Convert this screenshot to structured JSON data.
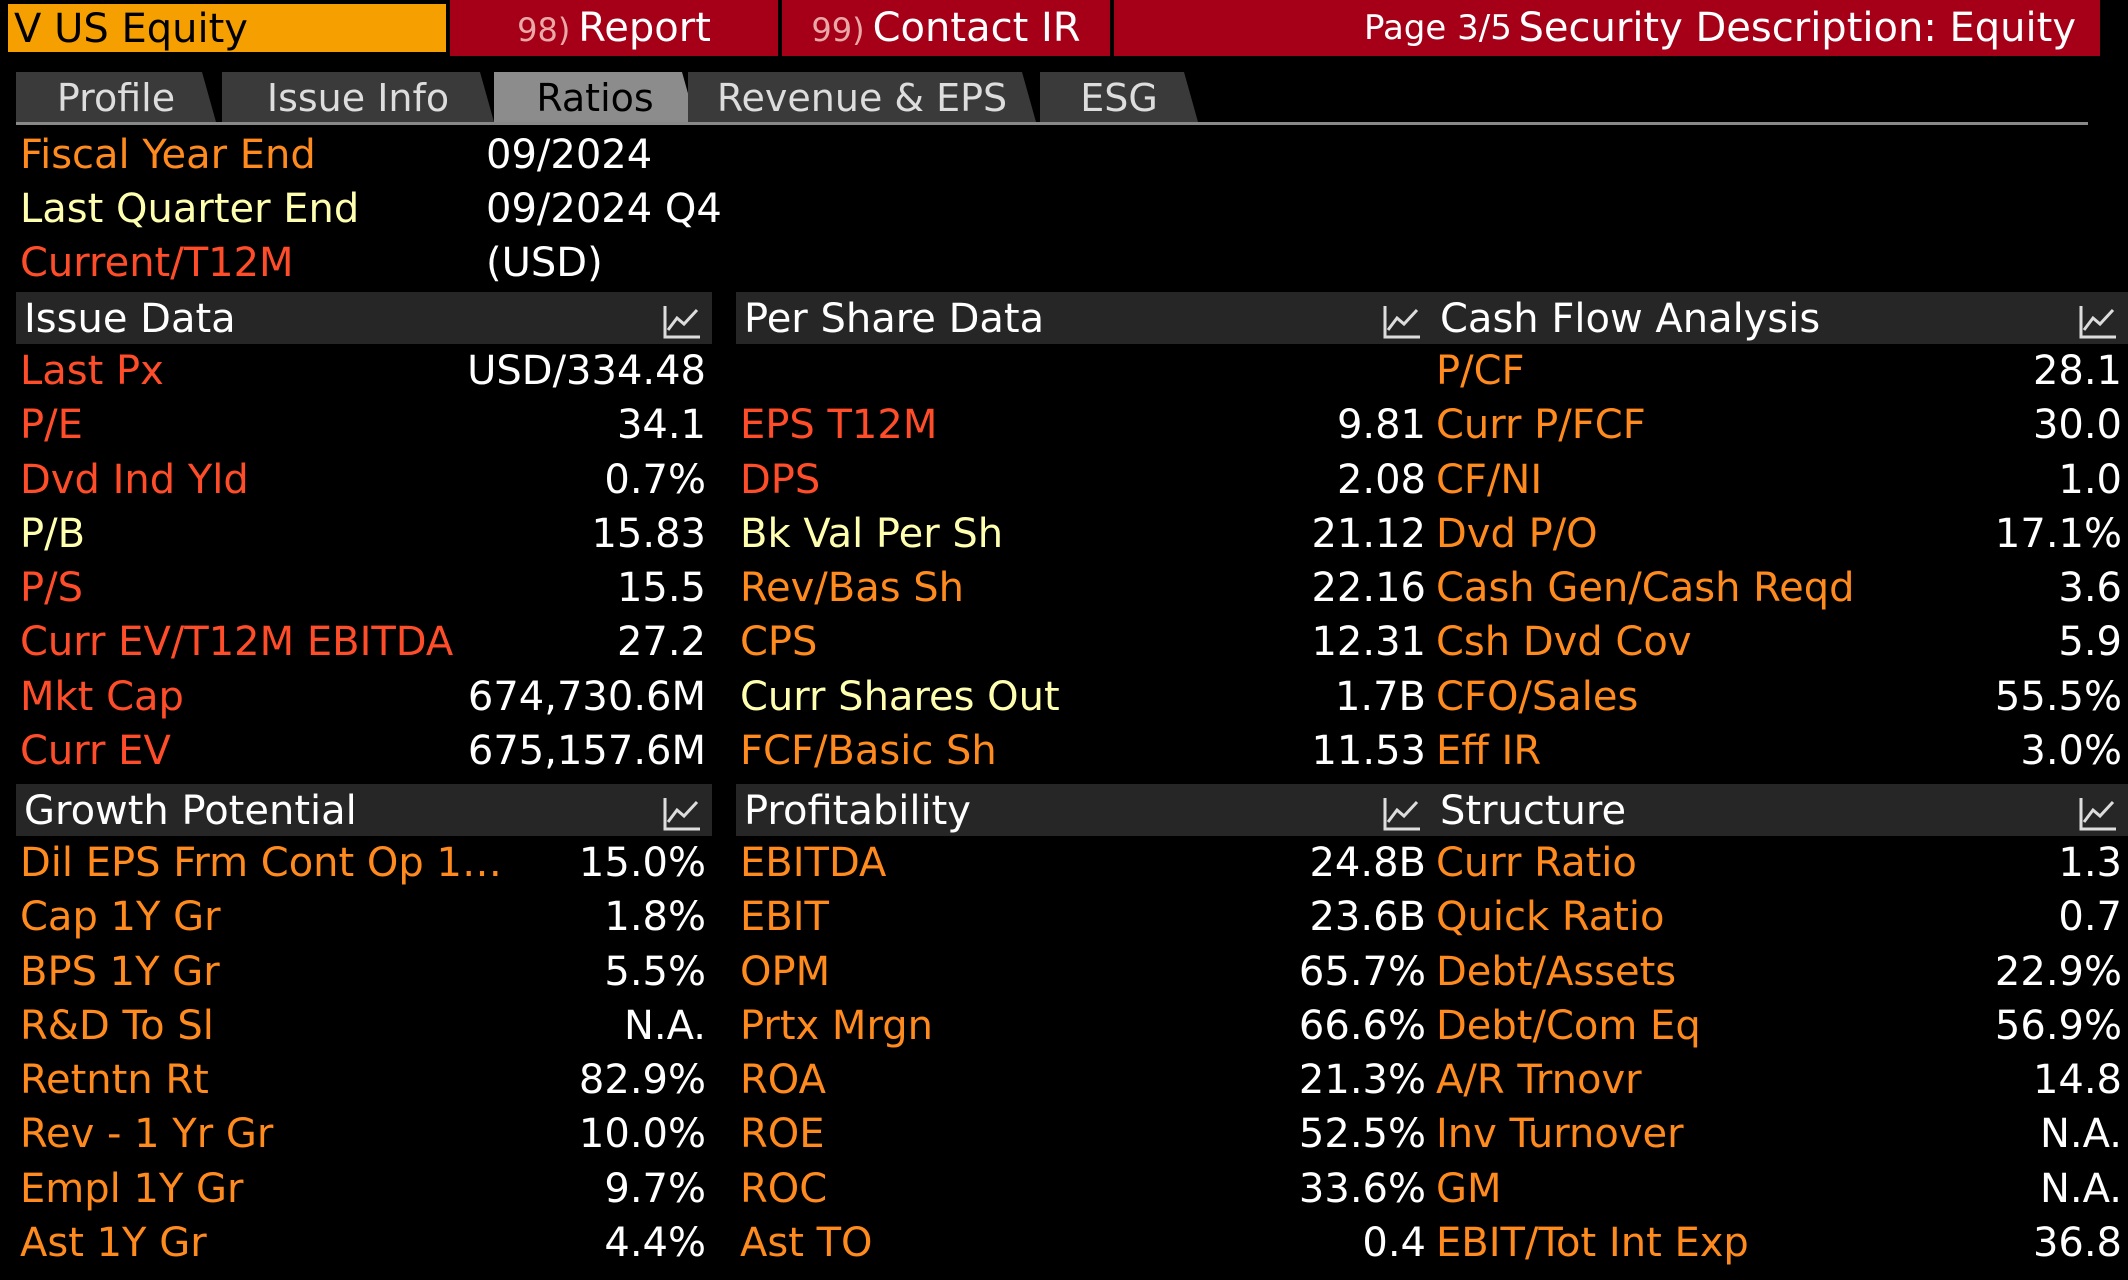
{
  "topbar": {
    "ticker": "V US Equity",
    "report_num": "98)",
    "report_label": "Report",
    "contact_num": "99)",
    "contact_label": "Contact IR",
    "page": "Page 3/5",
    "description": "Security Description: Equity"
  },
  "tabs": [
    {
      "label": "Profile"
    },
    {
      "label": "Issue Info"
    },
    {
      "label": "Ratios",
      "active": true
    },
    {
      "label": "Revenue & EPS"
    },
    {
      "label": "ESG"
    }
  ],
  "info": {
    "fiscal_year_end_label": "Fiscal Year End",
    "fiscal_year_end_value": "09/2024",
    "last_quarter_end_label": "Last Quarter End",
    "last_quarter_end_value": "09/2024 Q4",
    "current_label": "Current/T12M",
    "current_value": "(USD)"
  },
  "colors": {
    "orange": "#ff8a1e",
    "yellow": "#ffffb0",
    "red": "#ff4d2a",
    "ticker_bg": "#f5a000",
    "topbar_bg": "#a50017"
  },
  "panels": {
    "issue_data": {
      "title": "Issue Data",
      "rows": [
        {
          "label": "Last Px",
          "value": "USD/334.48",
          "color": "red"
        },
        {
          "label": "P/E",
          "value": "34.1",
          "color": "red"
        },
        {
          "label": "Dvd Ind Yld",
          "value": "0.7%",
          "color": "red"
        },
        {
          "label": "P/B",
          "value": "15.83",
          "color": "yellow"
        },
        {
          "label": "P/S",
          "value": "15.5",
          "color": "red"
        },
        {
          "label": "Curr EV/T12M EBITDA",
          "value": "27.2",
          "color": "red"
        },
        {
          "label": "Mkt Cap",
          "value": "674,730.6M",
          "color": "red"
        },
        {
          "label": "Curr EV",
          "value": "675,157.6M",
          "color": "red"
        }
      ]
    },
    "per_share_data": {
      "title": "Per Share Data",
      "rows": [
        {
          "label": "",
          "value": "",
          "color": "red"
        },
        {
          "label": "EPS T12M",
          "value": "9.81",
          "color": "red"
        },
        {
          "label": "DPS",
          "value": "2.08",
          "color": "red"
        },
        {
          "label": "Bk Val Per Sh",
          "value": "21.12",
          "color": "yellow"
        },
        {
          "label": "Rev/Bas Sh",
          "value": "22.16",
          "color": "orange"
        },
        {
          "label": "CPS",
          "value": "12.31",
          "color": "orange"
        },
        {
          "label": "Curr Shares Out",
          "value": "1.7B",
          "color": "yellow"
        },
        {
          "label": "FCF/Basic Sh",
          "value": "11.53",
          "color": "orange"
        }
      ]
    },
    "cash_flow_analysis": {
      "title": "Cash Flow Analysis",
      "rows": [
        {
          "label": "P/CF",
          "value": "28.1",
          "color": "orange"
        },
        {
          "label": "Curr P/FCF",
          "value": "30.0",
          "color": "orange"
        },
        {
          "label": "CF/NI",
          "value": "1.0",
          "color": "orange"
        },
        {
          "label": "Dvd P/O",
          "value": "17.1%",
          "color": "orange"
        },
        {
          "label": "Cash Gen/Cash Reqd",
          "value": "3.6",
          "color": "orange"
        },
        {
          "label": "Csh Dvd Cov",
          "value": "5.9",
          "color": "orange"
        },
        {
          "label": "CFO/Sales",
          "value": "55.5%",
          "color": "orange"
        },
        {
          "label": "Eff IR",
          "value": "3.0%",
          "color": "orange"
        }
      ]
    },
    "growth_potential": {
      "title": "Growth Potential",
      "rows": [
        {
          "label": "Dil EPS Frm Cont Op 1…",
          "value": "15.0%",
          "color": "orange"
        },
        {
          "label": "Cap 1Y Gr",
          "value": "1.8%",
          "color": "orange"
        },
        {
          "label": "BPS 1Y Gr",
          "value": "5.5%",
          "color": "orange"
        },
        {
          "label": "R&D To Sl",
          "value": "N.A.",
          "color": "orange"
        },
        {
          "label": "Retntn Rt",
          "value": "82.9%",
          "color": "orange"
        },
        {
          "label": "Rev - 1 Yr Gr",
          "value": "10.0%",
          "color": "orange"
        },
        {
          "label": "Empl 1Y Gr",
          "value": "9.7%",
          "color": "orange"
        },
        {
          "label": "Ast 1Y Gr",
          "value": "4.4%",
          "color": "orange"
        }
      ]
    },
    "profitability": {
      "title": "Profitability",
      "rows": [
        {
          "label": "EBITDA",
          "value": "24.8B",
          "color": "orange"
        },
        {
          "label": "EBIT",
          "value": "23.6B",
          "color": "orange"
        },
        {
          "label": "OPM",
          "value": "65.7%",
          "color": "orange"
        },
        {
          "label": "Prtx Mrgn",
          "value": "66.6%",
          "color": "orange"
        },
        {
          "label": "ROA",
          "value": "21.3%",
          "color": "orange"
        },
        {
          "label": "ROE",
          "value": "52.5%",
          "color": "orange"
        },
        {
          "label": "ROC",
          "value": "33.6%",
          "color": "orange"
        },
        {
          "label": "Ast TO",
          "value": "0.4",
          "color": "orange"
        }
      ]
    },
    "structure": {
      "title": "Structure",
      "rows": [
        {
          "label": "Curr Ratio",
          "value": "1.3",
          "color": "orange"
        },
        {
          "label": "Quick Ratio",
          "value": "0.7",
          "color": "orange"
        },
        {
          "label": "Debt/Assets",
          "value": "22.9%",
          "color": "orange"
        },
        {
          "label": "Debt/Com Eq",
          "value": "56.9%",
          "color": "orange"
        },
        {
          "label": "A/R Trnovr",
          "value": "14.8",
          "color": "orange"
        },
        {
          "label": "Inv Turnover",
          "value": "N.A.",
          "color": "orange"
        },
        {
          "label": "GM",
          "value": "N.A.",
          "color": "orange"
        },
        {
          "label": "EBIT/Tot Int Exp",
          "value": "36.8",
          "color": "orange"
        }
      ]
    }
  }
}
